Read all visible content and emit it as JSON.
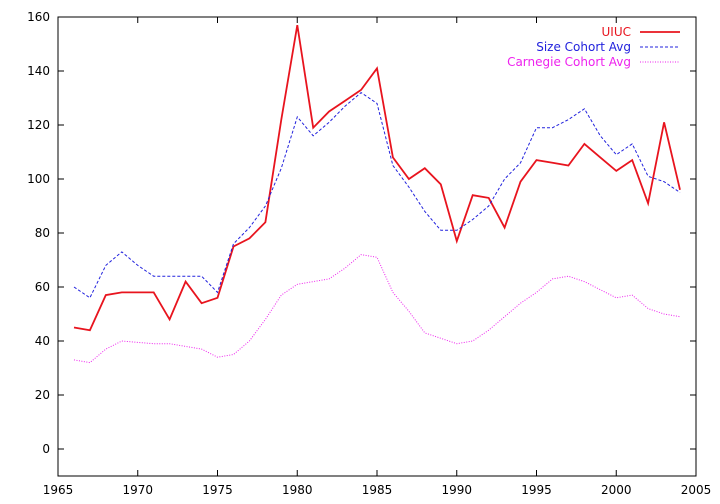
{
  "chart_data": {
    "type": "line",
    "title": "",
    "xlabel": "",
    "ylabel": "",
    "xlim": [
      1965,
      2005
    ],
    "ylim": [
      -10,
      160
    ],
    "xticks": [
      1965,
      1970,
      1975,
      1980,
      1985,
      1990,
      1995,
      2000,
      2005
    ],
    "yticks": [
      0,
      20,
      40,
      60,
      80,
      100,
      120,
      140,
      160
    ],
    "grid": false,
    "legend_position": "top-right",
    "series": [
      {
        "name": "UIUC",
        "color": "#e8141e",
        "style": "solid",
        "x": [
          1966,
          1967,
          1968,
          1969,
          1970,
          1971,
          1972,
          1973,
          1974,
          1975,
          1976,
          1977,
          1978,
          1979,
          1980,
          1981,
          1982,
          1983,
          1984,
          1985,
          1986,
          1987,
          1988,
          1989,
          1990,
          1991,
          1992,
          1993,
          1994,
          1995,
          1996,
          1997,
          1998,
          1999,
          2000,
          2001,
          2002,
          2003,
          2004
        ],
        "values": [
          45,
          44,
          57,
          58,
          58,
          58,
          48,
          62,
          54,
          56,
          75,
          78,
          84,
          122,
          157,
          119,
          125,
          129,
          133,
          141,
          108,
          100,
          104,
          98,
          77,
          94,
          93,
          82,
          99,
          107,
          106,
          105,
          113,
          108,
          103,
          107,
          91,
          121,
          96
        ]
      },
      {
        "name": "Size Cohort Avg",
        "color": "#2222dd",
        "style": "dashed",
        "x": [
          1966,
          1967,
          1968,
          1969,
          1970,
          1971,
          1972,
          1973,
          1974,
          1975,
          1976,
          1977,
          1978,
          1979,
          1980,
          1981,
          1982,
          1983,
          1984,
          1985,
          1986,
          1987,
          1988,
          1989,
          1990,
          1991,
          1992,
          1993,
          1994,
          1995,
          1996,
          1997,
          1998,
          1999,
          2000,
          2001,
          2002,
          2003,
          2004
        ],
        "values": [
          60,
          56,
          68,
          73,
          68,
          64,
          64,
          64,
          64,
          58,
          76,
          82,
          90,
          104,
          123,
          116,
          121,
          127,
          132,
          128,
          105,
          97,
          88,
          81,
          81,
          85,
          90,
          100,
          106,
          119,
          119,
          122,
          126,
          116,
          109,
          113,
          101,
          99,
          95
        ]
      },
      {
        "name": "Carnegie Cohort Avg",
        "color": "#ee22ee",
        "style": "dotted",
        "x": [
          1966,
          1967,
          1968,
          1969,
          1970,
          1971,
          1972,
          1973,
          1974,
          1975,
          1976,
          1977,
          1978,
          1979,
          1980,
          1981,
          1982,
          1983,
          1984,
          1985,
          1986,
          1987,
          1988,
          1989,
          1990,
          1991,
          1992,
          1993,
          1994,
          1995,
          1996,
          1997,
          1998,
          1999,
          2000,
          2001,
          2002,
          2003,
          2004
        ],
        "values": [
          33,
          32,
          37,
          40,
          39.5,
          39,
          39,
          38,
          37,
          34,
          35,
          40,
          48,
          57,
          61,
          62,
          63,
          67,
          72,
          71,
          58,
          51,
          43,
          41,
          39,
          40,
          44,
          49,
          54,
          58,
          63,
          64,
          62,
          59,
          56,
          57,
          52,
          50,
          49
        ]
      }
    ]
  }
}
